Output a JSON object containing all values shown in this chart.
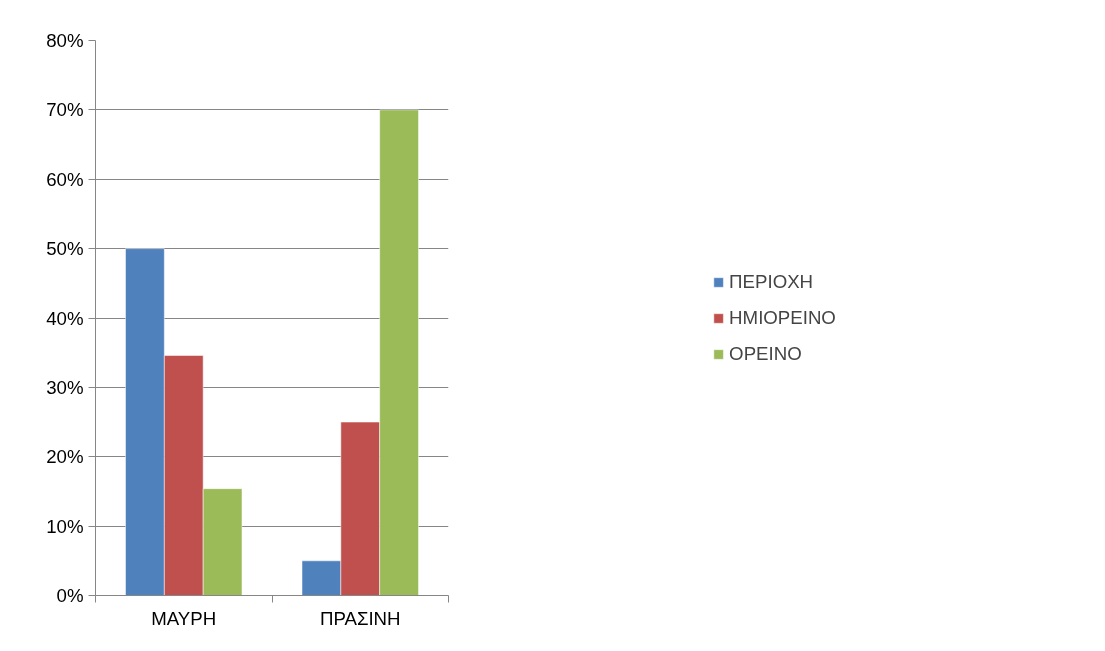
{
  "chart_data": {
    "type": "bar",
    "categories": [
      "ΜΑΥΡΗ",
      "ΠΡΑΣΙΝΗ"
    ],
    "series": [
      {
        "name": "ΠΕΡΙΟΧΗ",
        "color": "#4f81bd",
        "values": [
          50,
          5
        ]
      },
      {
        "name": "ΗΜΙΟΡΕΙΝΟ",
        "color": "#c0504d",
        "values": [
          34.6,
          25
        ]
      },
      {
        "name": "ΟΡΕΙΝΟ",
        "color": "#9bbb59",
        "values": [
          15.4,
          70
        ]
      }
    ],
    "ylim": [
      0,
      80
    ],
    "yticks": [
      {
        "value": 0,
        "label": "0%"
      },
      {
        "value": 10,
        "label": "10%"
      },
      {
        "value": 20,
        "label": "20%"
      },
      {
        "value": 30,
        "label": "30%"
      },
      {
        "value": 40,
        "label": "40%"
      },
      {
        "value": 50,
        "label": "50%"
      },
      {
        "value": 60,
        "label": "60%"
      },
      {
        "value": 70,
        "label": "70%"
      },
      {
        "value": 80,
        "label": "80%"
      }
    ],
    "grid": "y",
    "legend": "right"
  }
}
